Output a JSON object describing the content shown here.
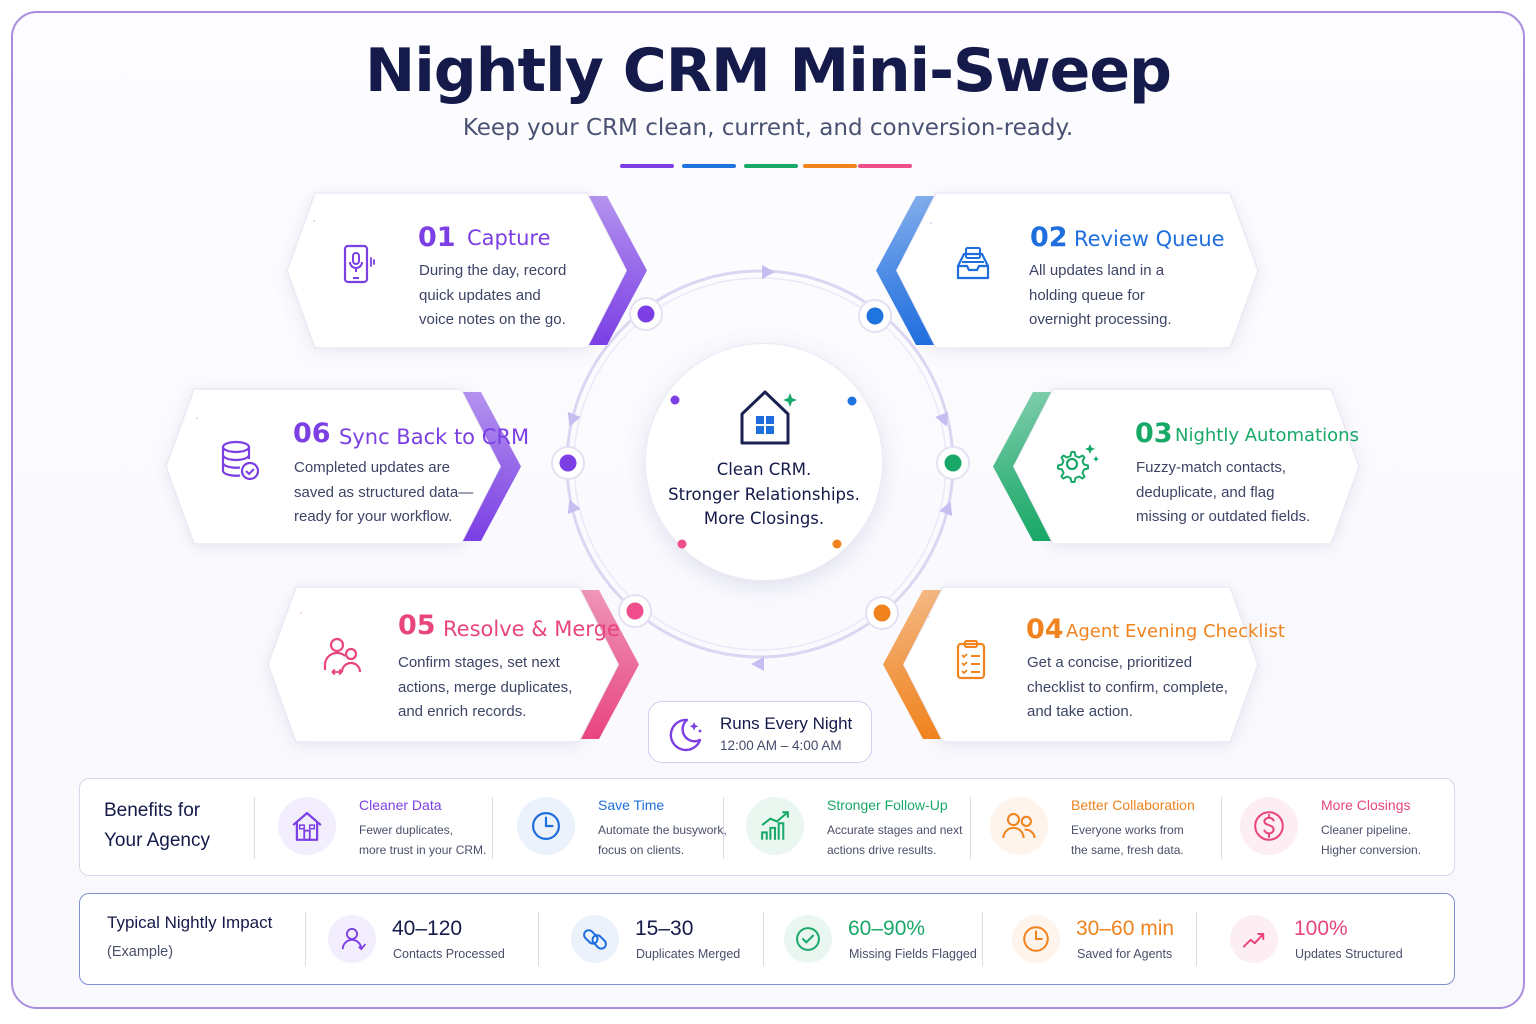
{
  "header": {
    "title": "Nightly CRM Mini-Sweep",
    "subtitle": "Keep your CRM clean, current, and conversion-ready."
  },
  "accent_colors": [
    "#7b3fe4",
    "#1f74e0",
    "#18a867",
    "#f0831e",
    "#ee4f8a"
  ],
  "center": {
    "icon": "house-icon",
    "lines": [
      "Clean CRM.",
      "Stronger Relationships.",
      "More Closings."
    ]
  },
  "steps": [
    {
      "num": "01",
      "name": "Capture",
      "icon": "phone-mic-icon",
      "color": "#7b3fe4",
      "desc": [
        "During the day, record",
        "quick updates and",
        "voice notes on the go."
      ]
    },
    {
      "num": "02",
      "name": "Review Queue",
      "icon": "inbox-tray-icon",
      "color": "#1f6ede",
      "desc": [
        "All updates land in a",
        "holding queue for",
        "overnight processing."
      ]
    },
    {
      "num": "03",
      "name": "Nightly Automations",
      "icon": "gear-sparkle-icon",
      "color": "#18a867",
      "desc": [
        "Fuzzy-match contacts,",
        "deduplicate, and flag",
        "missing or outdated fields."
      ]
    },
    {
      "num": "04",
      "name": "Agent Evening Checklist",
      "icon": "clipboard-checklist-icon",
      "color": "#f0831e",
      "desc": [
        "Get a concise, prioritized",
        "checklist to confirm, complete,",
        "and take action."
      ]
    },
    {
      "num": "05",
      "name": "Resolve & Merge",
      "icon": "people-merge-icon",
      "color": "#e8457e",
      "desc": [
        "Confirm stages, set next",
        "actions, merge duplicates,",
        "and enrich records."
      ]
    },
    {
      "num": "06",
      "name": "Sync Back to CRM",
      "icon": "database-check-icon",
      "color": "#7b3fe4",
      "desc": [
        "Completed updates are",
        "saved as structured data—",
        "ready for your workflow."
      ]
    }
  ],
  "schedule": {
    "icon": "moon-stars-icon",
    "label": "Runs Every Night",
    "time": "12:00 AM – 4:00 AM"
  },
  "benefits": {
    "heading": [
      "Benefits for",
      "Your Agency"
    ],
    "items": [
      {
        "title": "Cleaner Data",
        "icon": "house-icon",
        "color": "#7b3fe4",
        "desc": [
          "Fewer duplicates,",
          "more trust in your CRM."
        ]
      },
      {
        "title": "Save Time",
        "icon": "clock-icon",
        "color": "#1f6ede",
        "desc": [
          "Automate the busywork,",
          "focus on clients."
        ]
      },
      {
        "title": "Stronger Follow-Up",
        "icon": "growth-chart-icon",
        "color": "#18a867",
        "desc": [
          "Accurate stages and next",
          "actions drive results."
        ]
      },
      {
        "title": "Better Collaboration",
        "icon": "team-icon",
        "color": "#f0831e",
        "desc": [
          "Everyone works from",
          "the same, fresh data."
        ]
      },
      {
        "title": "More Closings",
        "icon": "dollar-icon",
        "color": "#e8457e",
        "desc": [
          "Cleaner pipeline.",
          "Higher conversion."
        ]
      }
    ]
  },
  "impact": {
    "heading": "Typical Nightly Impact",
    "subheading": "(Example)",
    "items": [
      {
        "value": "40–120",
        "label": "Contacts Processed",
        "icon": "person-icon",
        "color": "#7b3fe4",
        "value_color": "#141a4a"
      },
      {
        "value": "15–30",
        "label": "Duplicates Merged",
        "icon": "link-icon",
        "color": "#1f6ede",
        "value_color": "#141a4a"
      },
      {
        "value": "60–90%",
        "label": "Missing Fields Flagged",
        "icon": "check-circle-icon",
        "color": "#18a867",
        "value_color": "#18a867"
      },
      {
        "value": "30–60 min",
        "label": "Saved for Agents",
        "icon": "clock-icon",
        "color": "#f0831e",
        "value_color": "#f0831e"
      },
      {
        "value": "100%",
        "label": "Updates Structured",
        "icon": "trend-up-icon",
        "color": "#e8457e",
        "value_color": "#e8457e"
      }
    ]
  }
}
